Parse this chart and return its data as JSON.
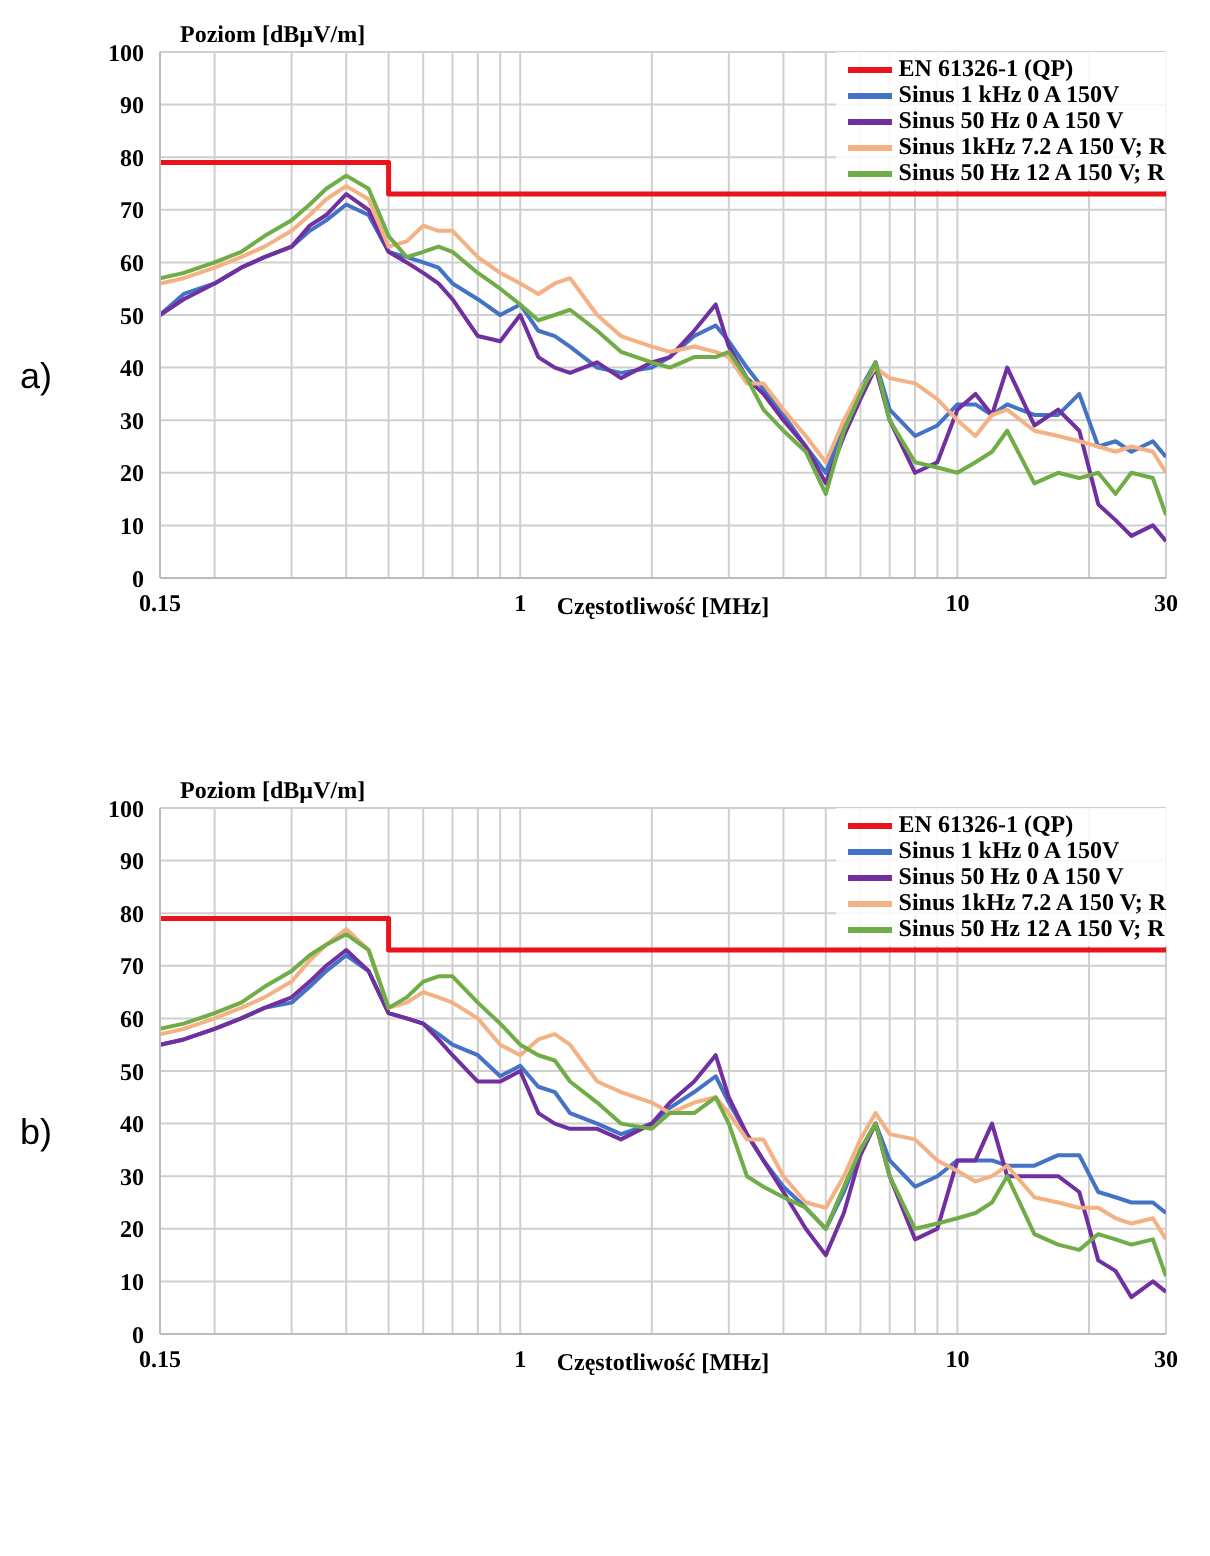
{
  "chart_data": [
    {
      "type": "line",
      "annotations": [
        "a)"
      ],
      "xlabel": "Częstotliwość [MHz]",
      "ylabel": "Poziom [dBµV/m]",
      "log": "x",
      "grid": true,
      "legend": "top right",
      "xlim": [
        0.15,
        30
      ],
      "ylim": [
        0,
        100
      ],
      "xticks": [
        0.15,
        {
          "value": 0.2,
          "label": null
        },
        {
          "value": 0.3,
          "label": null
        },
        {
          "value": 0.4,
          "label": null
        },
        {
          "value": 0.5,
          "label": null
        },
        {
          "value": 0.6,
          "label": null
        },
        {
          "value": 0.7,
          "label": null
        },
        {
          "value": 0.8,
          "label": null
        },
        {
          "value": 0.9,
          "label": null
        },
        1,
        {
          "value": 2,
          "label": null
        },
        {
          "value": 3,
          "label": null
        },
        {
          "value": 4,
          "label": null
        },
        {
          "value": 5,
          "label": null
        },
        {
          "value": 6,
          "label": null
        },
        {
          "value": 7,
          "label": null
        },
        {
          "value": 8,
          "label": null
        },
        {
          "value": 9,
          "label": null
        },
        10,
        {
          "value": 20,
          "label": null
        },
        30
      ],
      "yticks": [
        0,
        10,
        20,
        30,
        40,
        50,
        60,
        70,
        80,
        90,
        100
      ],
      "x": [
        0.15,
        0.17,
        0.2,
        0.23,
        0.26,
        0.3,
        0.33,
        0.36,
        0.4,
        0.45,
        0.5,
        0.55,
        0.6,
        0.65,
        0.7,
        0.8,
        0.9,
        1,
        1.1,
        1.2,
        1.3,
        1.5,
        1.7,
        2,
        2.2,
        2.5,
        2.8,
        3,
        3.3,
        3.6,
        4,
        4.5,
        5,
        5.5,
        6,
        6.5,
        7,
        8,
        9,
        10,
        11,
        12,
        13,
        15,
        17,
        19,
        21,
        23,
        25,
        28,
        30
      ],
      "series": [
        {
          "name": "EN 61326-1 (QP)",
          "type": "step",
          "color": "#e8131b",
          "x": [
            0.15,
            0.5,
            30
          ],
          "values": [
            79,
            73,
            73
          ]
        },
        {
          "name": "Sinus 1 kHz 0 A 150V",
          "color": "#4472c4",
          "values": [
            50,
            54,
            56,
            59,
            61,
            63,
            66,
            68,
            71,
            69,
            62,
            61,
            60,
            59,
            56,
            53,
            50,
            52,
            47,
            46,
            44,
            40,
            39,
            40,
            42,
            46,
            48,
            45,
            40,
            36,
            31,
            25,
            20,
            29,
            36,
            41,
            32,
            27,
            29,
            33,
            33,
            31,
            33,
            31,
            31,
            35,
            25,
            26,
            24,
            26,
            23
          ]
        },
        {
          "name": "Sinus 50 Hz 0 A 150 V",
          "color": "#7030a0",
          "values": [
            50,
            53,
            56,
            59,
            61,
            63,
            67,
            69,
            73,
            70,
            62,
            60,
            58,
            56,
            53,
            46,
            45,
            50,
            42,
            40,
            39,
            41,
            38,
            41,
            42,
            47,
            52,
            44,
            38,
            35,
            30,
            25,
            18,
            27,
            34,
            40,
            30,
            20,
            22,
            32,
            35,
            31,
            40,
            29,
            32,
            28,
            14,
            11,
            8,
            10,
            7
          ]
        },
        {
          "name": "Sinus 1kHz 7.2 A 150 V; R",
          "color": "#f4b183",
          "values": [
            56,
            57,
            59,
            61,
            63,
            66,
            69,
            72,
            74.5,
            72,
            63,
            64,
            67,
            66,
            66,
            61,
            58,
            56,
            54,
            56,
            57,
            50,
            46,
            44,
            43,
            44,
            43,
            42,
            37,
            37,
            32,
            27,
            22,
            30,
            36,
            40,
            38,
            37,
            34,
            30,
            27,
            31,
            32,
            28,
            27,
            26,
            25,
            24,
            25,
            24,
            20
          ]
        },
        {
          "name": "Sinus 50 Hz 12 A 150 V; R",
          "color": "#70ad47",
          "values": [
            57,
            58,
            60,
            62,
            65,
            68,
            71,
            74,
            76.5,
            74,
            65,
            61,
            62,
            63,
            62,
            58,
            55,
            52,
            49,
            50,
            51,
            47,
            43,
            41,
            40,
            42,
            42,
            43,
            38,
            32,
            28,
            24,
            16,
            28,
            35,
            41,
            30,
            22,
            21,
            20,
            22,
            24,
            28,
            18,
            20,
            19,
            20,
            16,
            20,
            19,
            12
          ]
        }
      ]
    },
    {
      "type": "line",
      "annotations": [
        "b)"
      ],
      "xlabel": "Częstotliwość [MHz]",
      "ylabel": "Poziom [dBµV/m]",
      "log": "x",
      "grid": true,
      "legend": "top right",
      "xlim": [
        0.15,
        30
      ],
      "ylim": [
        0,
        100
      ],
      "xticks": [
        0.15,
        {
          "value": 0.2,
          "label": null
        },
        {
          "value": 0.3,
          "label": null
        },
        {
          "value": 0.4,
          "label": null
        },
        {
          "value": 0.5,
          "label": null
        },
        {
          "value": 0.6,
          "label": null
        },
        {
          "value": 0.7,
          "label": null
        },
        {
          "value": 0.8,
          "label": null
        },
        {
          "value": 0.9,
          "label": null
        },
        1,
        {
          "value": 2,
          "label": null
        },
        {
          "value": 3,
          "label": null
        },
        {
          "value": 4,
          "label": null
        },
        {
          "value": 5,
          "label": null
        },
        {
          "value": 6,
          "label": null
        },
        {
          "value": 7,
          "label": null
        },
        {
          "value": 8,
          "label": null
        },
        {
          "value": 9,
          "label": null
        },
        10,
        {
          "value": 20,
          "label": null
        },
        30
      ],
      "yticks": [
        0,
        10,
        20,
        30,
        40,
        50,
        60,
        70,
        80,
        90,
        100
      ],
      "x": [
        0.15,
        0.17,
        0.2,
        0.23,
        0.26,
        0.3,
        0.33,
        0.36,
        0.4,
        0.45,
        0.5,
        0.55,
        0.6,
        0.65,
        0.7,
        0.8,
        0.9,
        1,
        1.1,
        1.2,
        1.3,
        1.5,
        1.7,
        2,
        2.2,
        2.5,
        2.8,
        3,
        3.3,
        3.6,
        4,
        4.5,
        5,
        5.5,
        6,
        6.5,
        7,
        8,
        9,
        10,
        11,
        12,
        13,
        15,
        17,
        19,
        21,
        23,
        25,
        28,
        30
      ],
      "series": [
        {
          "name": "EN 61326-1 (QP)",
          "type": "step",
          "color": "#e8131b",
          "x": [
            0.15,
            0.5,
            30
          ],
          "values": [
            79,
            73,
            73
          ]
        },
        {
          "name": "Sinus 1 kHz 0 A 150V",
          "color": "#4472c4",
          "values": [
            55,
            56,
            58,
            60,
            62,
            63,
            66,
            69,
            72,
            69,
            61,
            60,
            59,
            57,
            55,
            53,
            49,
            51,
            47,
            46,
            42,
            40,
            38,
            40,
            43,
            46,
            49,
            44,
            38,
            33,
            28,
            24,
            20,
            27,
            35,
            40,
            33,
            28,
            30,
            33,
            33,
            33,
            32,
            32,
            34,
            34,
            27,
            26,
            25,
            25,
            23
          ]
        },
        {
          "name": "Sinus 50 Hz 0 A 150 V",
          "color": "#7030a0",
          "values": [
            55,
            56,
            58,
            60,
            62,
            64,
            67,
            70,
            73,
            69,
            61,
            60,
            59,
            56,
            53,
            48,
            48,
            50,
            42,
            40,
            39,
            39,
            37,
            40,
            44,
            48,
            53,
            45,
            38,
            33,
            27,
            20,
            15,
            23,
            34,
            40,
            30,
            18,
            20,
            33,
            33,
            40,
            30,
            30,
            30,
            27,
            14,
            12,
            7,
            10,
            8
          ]
        },
        {
          "name": "Sinus 1kHz 7.2 A 150 V; R",
          "color": "#f4b183",
          "values": [
            57,
            58,
            60,
            62,
            64,
            67,
            71,
            74,
            77,
            73,
            62,
            63,
            65,
            64,
            63,
            60,
            55,
            53,
            56,
            57,
            55,
            48,
            46,
            44,
            42,
            44,
            45,
            42,
            37,
            37,
            30,
            25,
            24,
            30,
            37,
            42,
            38,
            37,
            33,
            31,
            29,
            30,
            32,
            26,
            25,
            24,
            24,
            22,
            21,
            22,
            18
          ]
        },
        {
          "name": "Sinus 50 Hz 12 A 150 V; R",
          "color": "#70ad47",
          "values": [
            58,
            59,
            61,
            63,
            66,
            69,
            72,
            74,
            76,
            73,
            62,
            64,
            67,
            68,
            68,
            63,
            59,
            55,
            53,
            52,
            48,
            44,
            40,
            39,
            42,
            42,
            45,
            40,
            30,
            28,
            26,
            24,
            20,
            28,
            35,
            40,
            30,
            20,
            21,
            22,
            23,
            25,
            30,
            19,
            17,
            16,
            19,
            18,
            17,
            18,
            11
          ]
        }
      ]
    }
  ]
}
